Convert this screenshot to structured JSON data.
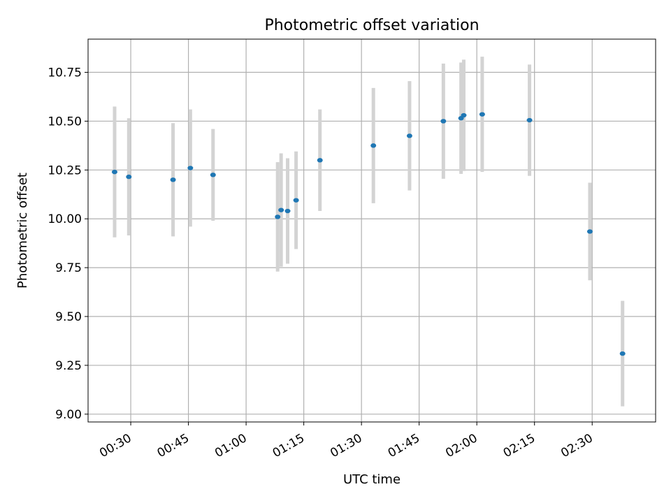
{
  "chart_data": {
    "type": "scatter",
    "title": "Photometric offset variation",
    "xlabel": "UTC time",
    "ylabel": "Photometric offset",
    "x_ticks": [
      "00:30",
      "00:45",
      "01:00",
      "01:15",
      "01:30",
      "01:45",
      "02:00",
      "02:15",
      "02:30"
    ],
    "x_tick_minutes": [
      30,
      45,
      60,
      75,
      90,
      105,
      120,
      135,
      150
    ],
    "x_range_minutes": [
      18.9,
      166.5
    ],
    "y_ticks": [
      "9.00",
      "9.25",
      "9.50",
      "9.75",
      "10.00",
      "10.25",
      "10.50",
      "10.75"
    ],
    "y_tick_values": [
      9.0,
      9.25,
      9.5,
      9.75,
      10.0,
      10.25,
      10.5,
      10.75
    ],
    "ylim": [
      8.96,
      10.92
    ],
    "grid": true,
    "series": [
      {
        "points": [
          {
            "t": "00:25:48",
            "y": 10.24,
            "err": 0.335
          },
          {
            "t": "00:29:30",
            "y": 10.215,
            "err": 0.3
          },
          {
            "t": "00:41:00",
            "y": 10.2,
            "err": 0.29
          },
          {
            "t": "00:45:30",
            "y": 10.26,
            "err": 0.3
          },
          {
            "t": "00:51:24",
            "y": 10.225,
            "err": 0.235
          },
          {
            "t": "01:08:12",
            "y": 10.01,
            "err": 0.28
          },
          {
            "t": "01:09:06",
            "y": 10.045,
            "err": 0.29
          },
          {
            "t": "01:10:48",
            "y": 10.04,
            "err": 0.27
          },
          {
            "t": "01:13:00",
            "y": 10.095,
            "err": 0.25
          },
          {
            "t": "01:19:12",
            "y": 10.3,
            "err": 0.26
          },
          {
            "t": "01:33:06",
            "y": 10.375,
            "err": 0.295
          },
          {
            "t": "01:42:30",
            "y": 10.425,
            "err": 0.28
          },
          {
            "t": "01:51:18",
            "y": 10.5,
            "err": 0.295
          },
          {
            "t": "01:55:54",
            "y": 10.515,
            "err": 0.285
          },
          {
            "t": "01:56:36",
            "y": 10.53,
            "err": 0.285
          },
          {
            "t": "02:01:24",
            "y": 10.535,
            "err": 0.295
          },
          {
            "t": "02:13:42",
            "y": 10.505,
            "err": 0.285
          },
          {
            "t": "02:29:24",
            "y": 9.935,
            "err": 0.25
          },
          {
            "t": "02:37:54",
            "y": 9.31,
            "err": 0.27
          }
        ]
      }
    ],
    "colors": {
      "marker": "#1f77b4",
      "errorbar": "#d3d3d3",
      "grid": "#b0b0b0",
      "axes": "#000000"
    }
  }
}
